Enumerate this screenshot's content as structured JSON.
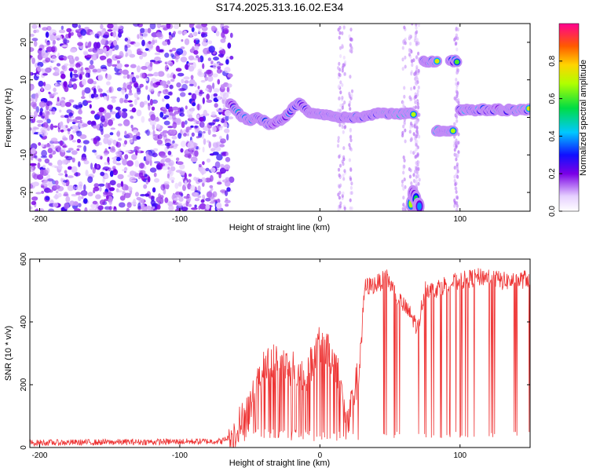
{
  "title": "S174.2025.313.16.02.E34",
  "chart_data": [
    {
      "type": "heatmap",
      "xlabel": "Height of straight line (km)",
      "ylabel": "Frequency (Hz)",
      "xlim": [
        -207,
        150
      ],
      "ylim": [
        -25,
        25
      ],
      "xticks": [
        -200,
        -100,
        0,
        100
      ],
      "yticks": [
        -20,
        -10,
        0,
        10,
        20
      ],
      "colorbar": {
        "label": "Normalized spectral amplitude",
        "range": [
          0,
          1
        ],
        "ticks": [
          "0.0",
          "0.2",
          "0.4",
          "0.6",
          "0.8"
        ],
        "tick_values": [
          0,
          0.2,
          0.4,
          0.6,
          0.8
        ]
      },
      "ridge": {
        "description_points_x": [
          -65,
          -60,
          -55,
          -50,
          -45,
          -40,
          -35,
          -30,
          -25,
          -20,
          -15,
          -10,
          -5,
          0,
          10,
          20,
          30,
          40,
          50,
          60,
          68
        ],
        "description_points_y": [
          4,
          2,
          0,
          -1,
          0,
          -1,
          -2,
          -1,
          0,
          2,
          4,
          2,
          1,
          1,
          0,
          0,
          0,
          1,
          1,
          1,
          1
        ]
      },
      "features": [
        {
          "x_range": [
            74,
            84
          ],
          "freq": 15
        },
        {
          "x_range": [
            93,
            99
          ],
          "freq": 15
        },
        {
          "x_range": [
            83,
            96
          ],
          "freq": -3.5
        },
        {
          "x_range": [
            65,
            72
          ],
          "freq": -22
        },
        {
          "x_range": [
            100,
            150
          ],
          "freq": 2
        }
      ],
      "noise_region": [
        -207,
        -63
      ]
    },
    {
      "type": "line",
      "xlabel": "Height of straight line (km)",
      "ylabel": "SNR (10 * v/v)",
      "xlim": [
        -207,
        150
      ],
      "ylim": [
        0,
        600
      ],
      "xticks": [
        -200,
        -100,
        0,
        100
      ],
      "yticks": [
        0,
        200,
        400,
        600
      ],
      "color": "#ee3333",
      "profile": {
        "x": [
          -207,
          -120,
          -70,
          -62,
          -50,
          -40,
          -32,
          -20,
          -10,
          0,
          5,
          12,
          20,
          28,
          32,
          40,
          48,
          55,
          60,
          65,
          70,
          75,
          80,
          90,
          100,
          110,
          120,
          130,
          140,
          150
        ],
        "y": [
          15,
          18,
          20,
          40,
          130,
          250,
          280,
          250,
          230,
          330,
          310,
          260,
          70,
          250,
          510,
          520,
          540,
          480,
          450,
          420,
          380,
          510,
          500,
          520,
          530,
          540,
          545,
          530,
          530,
          540
        ]
      }
    }
  ]
}
